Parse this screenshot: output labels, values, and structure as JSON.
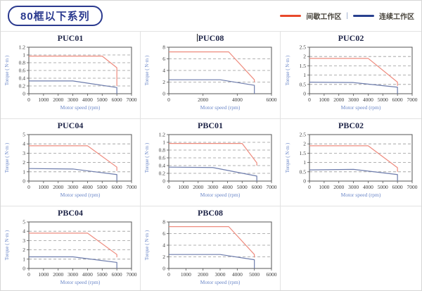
{
  "header": {
    "series_title": "80框以下系列",
    "legend": {
      "intermittent_label": "间歇工作区",
      "separator": "|",
      "continuous_label": "连续工作区",
      "intermittent_color": "#e8492b",
      "continuous_color": "#28408e"
    }
  },
  "colors": {
    "chart_red_line": "#ee8b7e",
    "chart_blue_line": "#6d7cac",
    "grid_dash": "#999999",
    "plot_border": "#555555",
    "tick_text": "#3a3a3a",
    "axis_title_text": "#6b87c8",
    "chart_title_text": "#1f2548",
    "badge_navy": "#2b3a8f"
  },
  "chart_data": [
    {
      "type": "line",
      "title": "PUC01",
      "xlabel": "Motor speed (rpm)",
      "ylabel": "Torque ( N·m )",
      "xlim": [
        0,
        7000
      ],
      "xticks": [
        0,
        1000,
        2000,
        3000,
        4000,
        5000,
        6000,
        7000
      ],
      "ylim": [
        0,
        1.2
      ],
      "yticks": [
        0,
        0.2,
        0.4,
        0.6,
        0.8,
        1,
        1.2
      ],
      "grid": "horizontal-dashed",
      "legend_position": "none",
      "series": [
        {
          "name": "间歇工作区",
          "role": "intermittent",
          "points": [
            [
              0,
              0.97
            ],
            [
              5000,
              0.97
            ],
            [
              6000,
              0.67
            ],
            [
              6000,
              0.2
            ]
          ]
        },
        {
          "name": "连续工作区",
          "role": "continuous",
          "points": [
            [
              0,
              0.33
            ],
            [
              3000,
              0.33
            ],
            [
              6000,
              0.16
            ],
            [
              6000,
              0
            ]
          ]
        }
      ]
    },
    {
      "type": "line",
      "title": "PUC08",
      "title_bar": "|",
      "xlabel": "Motor speed (rpm)",
      "ylabel": "Torque ( N·m )",
      "xlim": [
        0,
        6000
      ],
      "xticks": [
        0,
        2000,
        4000,
        6000
      ],
      "ylim": [
        0,
        8
      ],
      "yticks": [
        0,
        2,
        4,
        6,
        8
      ],
      "grid": "horizontal-dashed",
      "legend_position": "none",
      "series": [
        {
          "name": "间歇工作区",
          "role": "intermittent",
          "points": [
            [
              0,
              7.2
            ],
            [
              3500,
              7.2
            ],
            [
              5000,
              2.4
            ],
            [
              5000,
              2.0
            ]
          ]
        },
        {
          "name": "连续工作区",
          "role": "continuous",
          "points": [
            [
              0,
              2.4
            ],
            [
              3000,
              2.4
            ],
            [
              5000,
              1.45
            ],
            [
              5000,
              0
            ]
          ]
        }
      ]
    },
    {
      "type": "line",
      "title": "PUC02",
      "xlabel": "Motor speed (rpm)",
      "ylabel": "Torque ( N·m )",
      "xlim": [
        0,
        7000
      ],
      "xticks": [
        0,
        1000,
        2000,
        3000,
        4000,
        5000,
        6000,
        7000
      ],
      "ylim": [
        0,
        2.5
      ],
      "yticks": [
        0,
        0.5,
        1,
        1.5,
        2,
        2.5
      ],
      "grid": "horizontal-dashed",
      "legend_position": "none",
      "series": [
        {
          "name": "间歇工作区",
          "role": "intermittent",
          "points": [
            [
              0,
              1.9
            ],
            [
              4000,
              1.9
            ],
            [
              6000,
              0.62
            ],
            [
              6000,
              0.42
            ]
          ]
        },
        {
          "name": "连续工作区",
          "role": "continuous",
          "points": [
            [
              0,
              0.62
            ],
            [
              3000,
              0.6
            ],
            [
              6000,
              0.35
            ],
            [
              6000,
              0
            ]
          ]
        }
      ]
    },
    {
      "type": "line",
      "title": "PUC04",
      "xlabel": "Motor speed (rpm)",
      "ylabel": "Torque ( N·m )",
      "xlim": [
        0,
        7000
      ],
      "xticks": [
        0,
        1000,
        2000,
        3000,
        4000,
        5000,
        6000,
        7000
      ],
      "ylim": [
        0,
        5
      ],
      "yticks": [
        0,
        1,
        2,
        3,
        4,
        5
      ],
      "grid": "horizontal-dashed",
      "legend_position": "none",
      "series": [
        {
          "name": "间歇工作区",
          "role": "intermittent",
          "points": [
            [
              0,
              3.8
            ],
            [
              4000,
              3.8
            ],
            [
              6000,
              1.5
            ],
            [
              6000,
              1.1
            ]
          ]
        },
        {
          "name": "连续工作区",
          "role": "continuous",
          "points": [
            [
              0,
              1.35
            ],
            [
              3000,
              1.3
            ],
            [
              6000,
              0.7
            ],
            [
              6000,
              0
            ]
          ]
        }
      ]
    },
    {
      "type": "line",
      "title": "PBC01",
      "xlabel": "Motor speed (rpm)",
      "ylabel": "Torque ( N·m )",
      "xlim": [
        0,
        7000
      ],
      "xticks": [
        0,
        1000,
        2000,
        3000,
        4000,
        5000,
        6000,
        7000
      ],
      "ylim": [
        0,
        1.2
      ],
      "yticks": [
        0,
        0.2,
        0.4,
        0.6,
        0.8,
        1,
        1.2
      ],
      "grid": "horizontal-dashed",
      "legend_position": "none",
      "series": [
        {
          "name": "间歇工作区",
          "role": "intermittent",
          "points": [
            [
              0,
              0.97
            ],
            [
              5000,
              0.97
            ],
            [
              6000,
              0.47
            ],
            [
              6000,
              0.4
            ]
          ]
        },
        {
          "name": "连续工作区",
          "role": "continuous",
          "points": [
            [
              0,
              0.36
            ],
            [
              3000,
              0.35
            ],
            [
              6000,
              0.13
            ],
            [
              6000,
              0
            ]
          ]
        }
      ]
    },
    {
      "type": "line",
      "title": "PBC02",
      "xlabel": "Motor speed (rpm)",
      "ylabel": "Torque ( N·m )",
      "xlim": [
        0,
        7000
      ],
      "xticks": [
        0,
        1000,
        2000,
        3000,
        4000,
        5000,
        6000,
        7000
      ],
      "ylim": [
        0,
        2.5
      ],
      "yticks": [
        0,
        0.5,
        1,
        1.5,
        2,
        2.5
      ],
      "grid": "horizontal-dashed",
      "legend_position": "none",
      "series": [
        {
          "name": "间歇工作区",
          "role": "intermittent",
          "points": [
            [
              0,
              1.9
            ],
            [
              4000,
              1.9
            ],
            [
              6000,
              0.72
            ],
            [
              6000,
              0.5
            ]
          ]
        },
        {
          "name": "连续工作区",
          "role": "continuous",
          "points": [
            [
              0,
              0.6
            ],
            [
              3000,
              0.63
            ],
            [
              6000,
              0.35
            ],
            [
              6000,
              0
            ]
          ]
        }
      ]
    },
    {
      "type": "line",
      "title": "PBC04",
      "xlabel": "Motor speed (rpm)",
      "ylabel": "Torque ( N·m )",
      "xlim": [
        0,
        7000
      ],
      "xticks": [
        0,
        1000,
        2000,
        3000,
        4000,
        5000,
        6000,
        7000
      ],
      "ylim": [
        0,
        5
      ],
      "yticks": [
        0,
        1,
        2,
        3,
        4,
        5
      ],
      "grid": "horizontal-dashed",
      "legend_position": "none",
      "series": [
        {
          "name": "间歇工作区",
          "role": "intermittent",
          "points": [
            [
              0,
              3.8
            ],
            [
              4000,
              3.8
            ],
            [
              6000,
              1.5
            ],
            [
              6000,
              1.2
            ]
          ]
        },
        {
          "name": "连续工作区",
          "role": "continuous",
          "points": [
            [
              0,
              1.25
            ],
            [
              3000,
              1.25
            ],
            [
              6000,
              0.65
            ],
            [
              6000,
              0
            ]
          ]
        }
      ]
    },
    {
      "type": "line",
      "title": "PBC08",
      "xlabel": "Motor speed (rpm)",
      "ylabel": "Torque ( N·m )",
      "xlim": [
        0,
        6000
      ],
      "xticks": [
        0,
        1000,
        2000,
        3000,
        4000,
        5000,
        6000
      ],
      "ylim": [
        0,
        8
      ],
      "yticks": [
        0,
        2,
        4,
        6,
        8
      ],
      "grid": "horizontal-dashed",
      "legend_position": "none",
      "series": [
        {
          "name": "间歇工作区",
          "role": "intermittent",
          "points": [
            [
              0,
              7.2
            ],
            [
              3500,
              7.2
            ],
            [
              5000,
              2.4
            ],
            [
              5000,
              1.9
            ]
          ]
        },
        {
          "name": "连续工作区",
          "role": "continuous",
          "points": [
            [
              0,
              2.4
            ],
            [
              3000,
              2.4
            ],
            [
              5000,
              1.5
            ],
            [
              5000,
              0
            ]
          ]
        }
      ]
    }
  ]
}
